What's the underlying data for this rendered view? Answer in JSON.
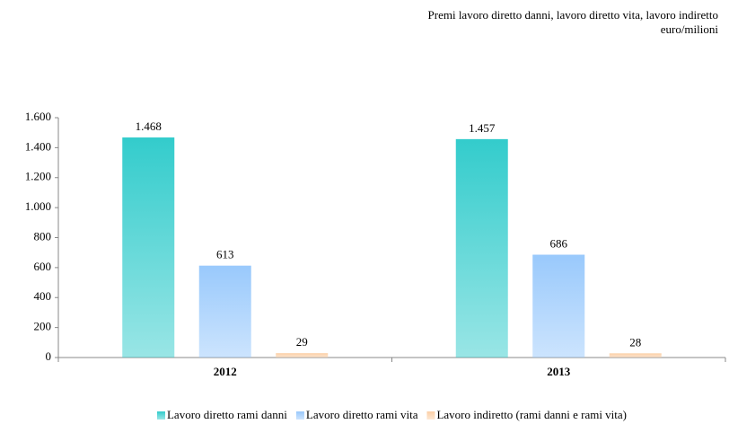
{
  "chart_data": {
    "type": "bar",
    "title": "Premi lavoro diretto danni, lavoro diretto vita, lavoro indiretto",
    "subtitle": "euro/milioni",
    "categories": [
      "2012",
      "2013"
    ],
    "series": [
      {
        "name": "Lavoro diretto rami danni",
        "color": "#33cccc",
        "values": [
          1468,
          1457
        ],
        "value_labels": [
          "1.468",
          "1.457"
        ]
      },
      {
        "name": "Lavoro diretto rami vita",
        "color": "#99c9fc",
        "values": [
          613,
          686
        ]
      },
      {
        "name": "Lavoro indiretto (rami danni e rami vita)",
        "color": "#fbcfa6",
        "values": [
          29,
          28
        ]
      }
    ],
    "ylim": [
      0,
      1600
    ],
    "yticks": [
      0,
      200,
      400,
      600,
      800,
      {
        "value": 1000,
        "label": "1.000"
      },
      {
        "value": 1200,
        "label": "1.200"
      },
      {
        "value": 1400,
        "label": "1.400"
      },
      {
        "value": 1600,
        "label": "1.600"
      }
    ],
    "grid": false
  }
}
